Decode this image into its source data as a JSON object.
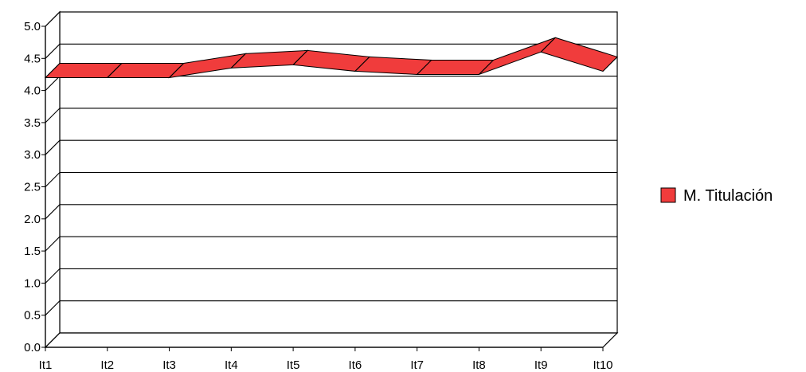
{
  "chart_data": {
    "type": "area",
    "style": "3d-ribbon-line",
    "title": "",
    "xlabel": "",
    "ylabel": "",
    "categories": [
      "It1",
      "It2",
      "It3",
      "It4",
      "It5",
      "It6",
      "It7",
      "It8",
      "It9",
      "It10"
    ],
    "ylim": [
      0,
      5
    ],
    "y_ticks": [
      "0.0",
      "0.5",
      "1.0",
      "1.5",
      "2.0",
      "2.5",
      "3.0",
      "3.5",
      "4.0",
      "4.5",
      "5.0"
    ],
    "grid": true,
    "legend_position": "right",
    "series": [
      {
        "name": "M. Titulación",
        "color": "#f03c3c",
        "values": [
          4.2,
          4.2,
          4.2,
          4.35,
          4.4,
          4.3,
          4.25,
          4.25,
          4.6,
          4.3
        ]
      }
    ]
  }
}
